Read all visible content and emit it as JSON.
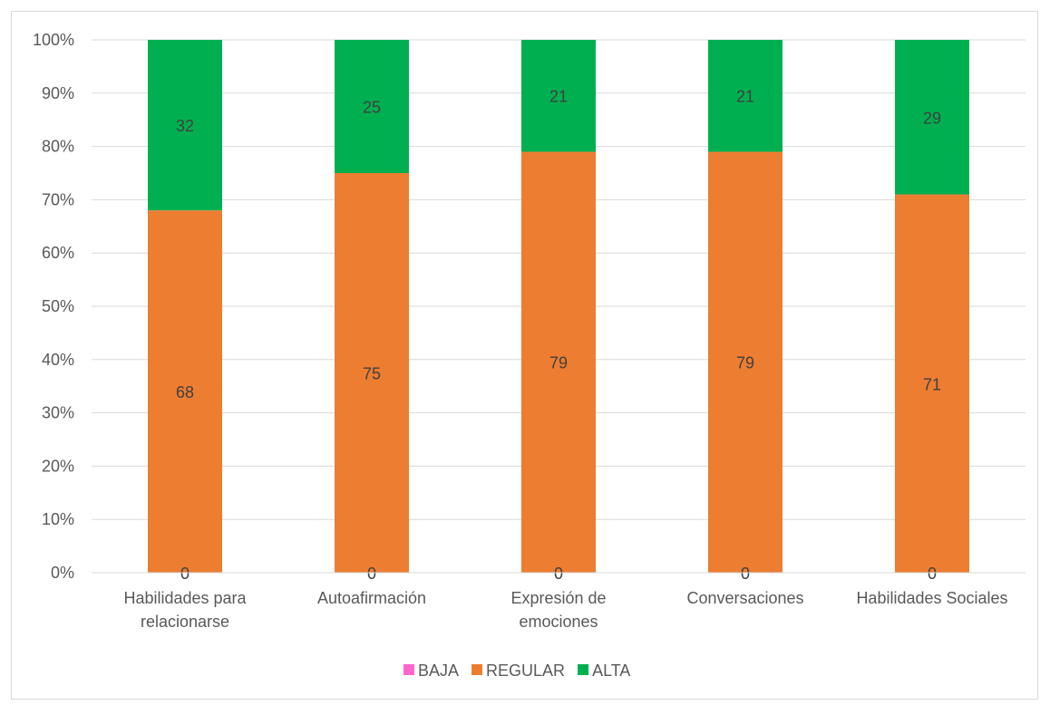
{
  "chart_data": {
    "type": "bar",
    "stacked": "percent",
    "categories": [
      [
        "Habilidades para",
        "relacionarse"
      ],
      [
        "Autoafirmación"
      ],
      [
        "Expresión de",
        "emociones"
      ],
      [
        "Conversaciones"
      ],
      [
        "Habilidades Sociales"
      ]
    ],
    "series": [
      {
        "name": "BAJA",
        "color": "#ff66cc",
        "values": [
          0,
          0,
          0,
          0,
          0
        ]
      },
      {
        "name": "REGULAR",
        "color": "#ed7d31",
        "values": [
          68,
          75,
          79,
          79,
          71
        ]
      },
      {
        "name": "ALTA",
        "color": "#00b050",
        "values": [
          32,
          25,
          21,
          21,
          29
        ]
      }
    ],
    "y_ticks": [
      "0%",
      "10%",
      "20%",
      "30%",
      "40%",
      "50%",
      "60%",
      "70%",
      "80%",
      "90%",
      "100%"
    ],
    "ylim": [
      0,
      100
    ],
    "grid": true,
    "legend_position": "bottom"
  }
}
